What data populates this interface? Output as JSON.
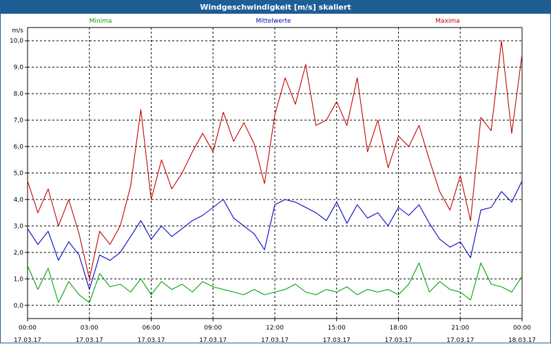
{
  "window": {
    "title": "Windgeschwindigkeit [m/s] skaliert"
  },
  "chart_data": {
    "type": "line",
    "title": "Windgeschwindigkeit [m/s] skaliert",
    "ylabel": "m/s",
    "ylim": [
      -0.5,
      10.5
    ],
    "xlim": [
      0,
      24
    ],
    "grid": true,
    "y_ticks": [
      "0,0",
      "1,0",
      "2,0",
      "3,0",
      "4,0",
      "5,0",
      "6,0",
      "7,0",
      "8,0",
      "9,0",
      "10,0"
    ],
    "x_ticks": [
      {
        "time": "00:00",
        "date": "17.03.17"
      },
      {
        "time": "03:00",
        "date": "17.03.17"
      },
      {
        "time": "06:00",
        "date": "17.03.17"
      },
      {
        "time": "09:00",
        "date": "17.03.17"
      },
      {
        "time": "12:00",
        "date": "17.03.17"
      },
      {
        "time": "15:00",
        "date": "17.03.17"
      },
      {
        "time": "18:00",
        "date": "17.03.17"
      },
      {
        "time": "21:00",
        "date": "17.03.17"
      },
      {
        "time": "00:00",
        "date": "18.03.17"
      }
    ],
    "legend": [
      "Minima",
      "Mittelwerte",
      "Maxima"
    ],
    "x": [
      0.0,
      0.5,
      1.0,
      1.5,
      2.0,
      2.5,
      3.0,
      3.5,
      4.0,
      4.5,
      5.0,
      5.5,
      6.0,
      6.5,
      7.0,
      7.5,
      8.0,
      8.5,
      9.0,
      9.5,
      10.0,
      10.5,
      11.0,
      11.5,
      12.0,
      12.5,
      13.0,
      13.5,
      14.0,
      14.5,
      15.0,
      15.5,
      16.0,
      16.5,
      17.0,
      17.5,
      18.0,
      18.5,
      19.0,
      19.5,
      20.0,
      20.5,
      21.0,
      21.5,
      22.0,
      22.5,
      23.0,
      23.5,
      24.0
    ],
    "series": [
      {
        "name": "Minima",
        "color": "#00a000",
        "values": [
          1.5,
          0.6,
          1.4,
          0.1,
          0.9,
          0.4,
          0.1,
          1.2,
          0.7,
          0.8,
          0.5,
          1.0,
          0.4,
          0.9,
          0.6,
          0.8,
          0.5,
          0.9,
          0.7,
          0.6,
          0.5,
          0.4,
          0.6,
          0.4,
          0.5,
          0.6,
          0.8,
          0.5,
          0.4,
          0.6,
          0.5,
          0.7,
          0.4,
          0.6,
          0.5,
          0.6,
          0.4,
          0.8,
          1.6,
          0.5,
          0.9,
          0.6,
          0.5,
          0.2,
          1.6,
          0.8,
          0.7,
          0.5,
          1.1
        ]
      },
      {
        "name": "Mittelwerte",
        "color": "#0000c0",
        "values": [
          2.9,
          2.3,
          2.8,
          1.7,
          2.4,
          1.9,
          0.6,
          1.9,
          1.7,
          2.0,
          2.6,
          3.2,
          2.5,
          3.0,
          2.6,
          2.9,
          3.2,
          3.4,
          3.7,
          4.0,
          3.3,
          3.0,
          2.7,
          2.1,
          3.8,
          4.0,
          3.9,
          3.7,
          3.5,
          3.2,
          3.9,
          3.1,
          3.8,
          3.3,
          3.5,
          3.0,
          3.7,
          3.4,
          3.8,
          3.1,
          2.5,
          2.2,
          2.4,
          1.8,
          3.6,
          3.7,
          4.3,
          3.9,
          4.7
        ]
      },
      {
        "name": "Maxima",
        "color": "#c00000",
        "values": [
          4.7,
          3.5,
          4.4,
          3.0,
          4.0,
          2.7,
          1.0,
          2.8,
          2.3,
          3.0,
          4.5,
          7.4,
          4.0,
          5.5,
          4.4,
          5.0,
          5.8,
          6.5,
          5.8,
          7.3,
          6.2,
          6.9,
          6.1,
          4.6,
          7.2,
          8.6,
          7.6,
          9.1,
          6.8,
          7.0,
          7.7,
          6.8,
          8.6,
          5.8,
          7.0,
          5.2,
          6.4,
          6.0,
          6.8,
          5.5,
          4.3,
          3.6,
          4.9,
          3.2,
          7.1,
          6.6,
          10.0,
          6.5,
          9.5
        ]
      }
    ]
  }
}
